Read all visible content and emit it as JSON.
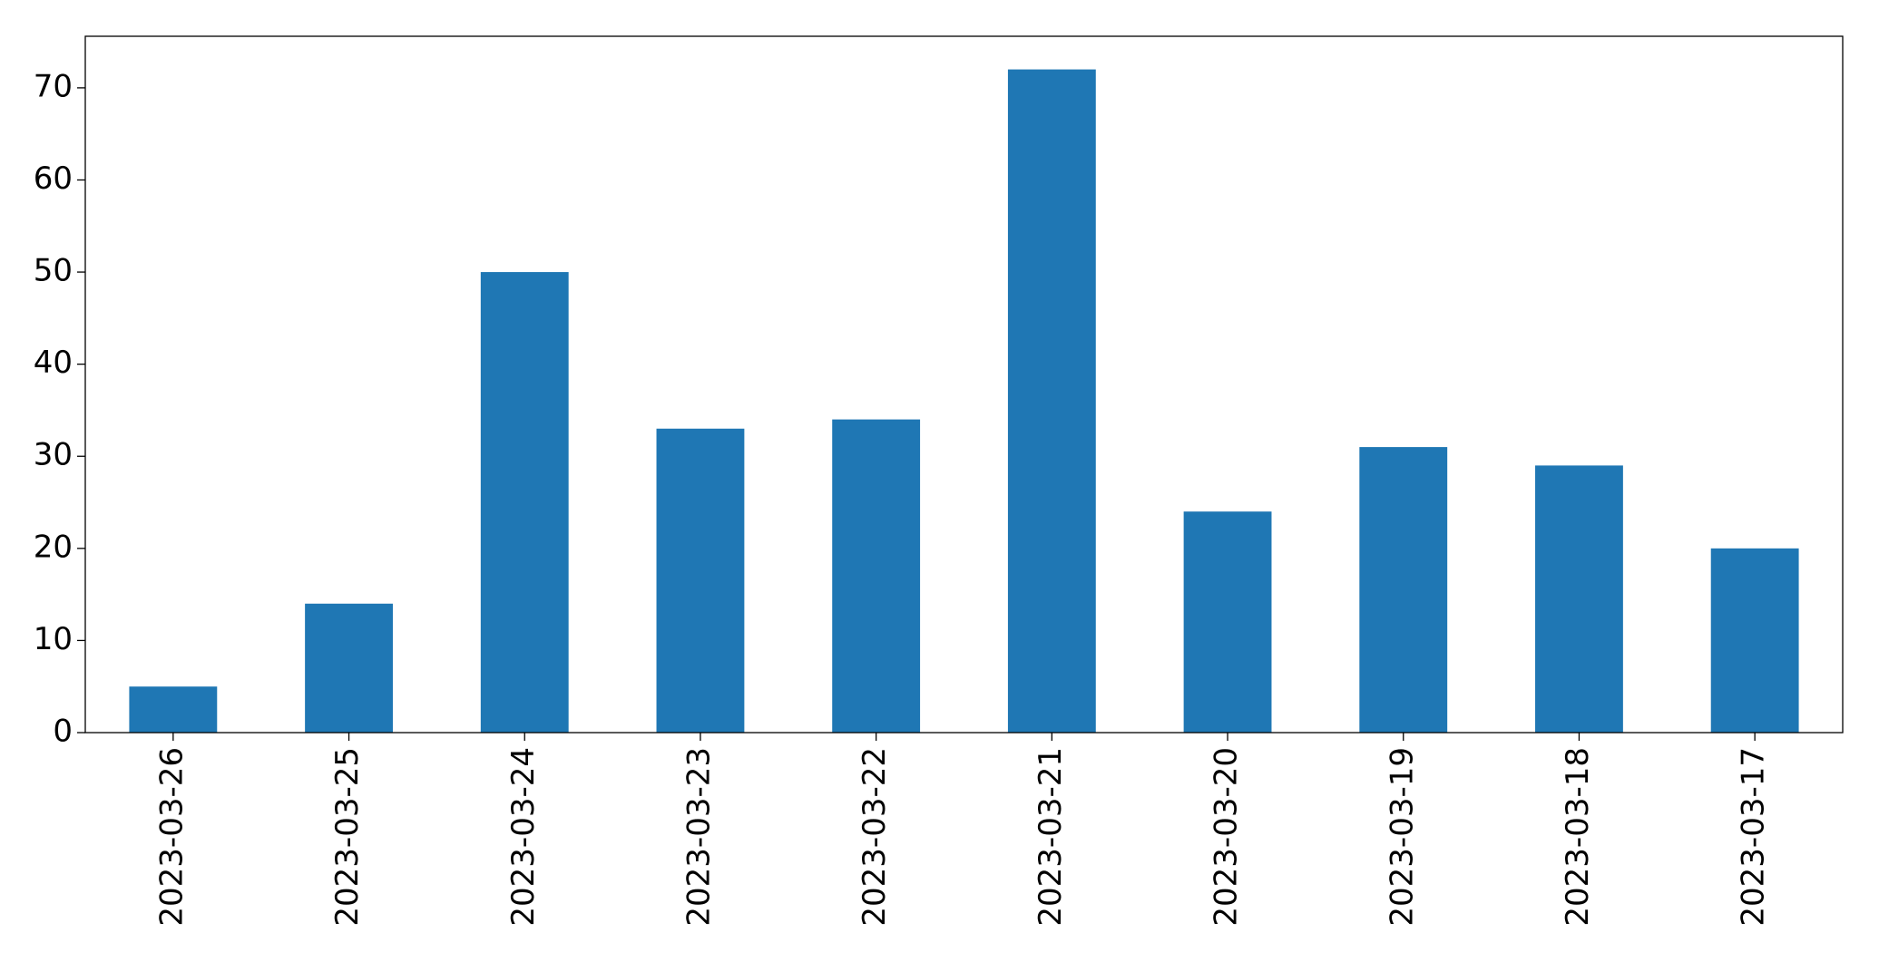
{
  "chart_data": {
    "type": "bar",
    "categories": [
      "2023-03-26",
      "2023-03-25",
      "2023-03-24",
      "2023-03-23",
      "2023-03-22",
      "2023-03-21",
      "2023-03-20",
      "2023-03-19",
      "2023-03-18",
      "2023-03-17"
    ],
    "values": [
      5,
      14,
      50,
      33,
      34,
      72,
      24,
      31,
      29,
      20
    ],
    "color": "#1f77b4",
    "ylim": [
      0,
      75.6
    ],
    "yticks": [
      0,
      10,
      20,
      30,
      40,
      50,
      60,
      70
    ],
    "grid": false
  }
}
